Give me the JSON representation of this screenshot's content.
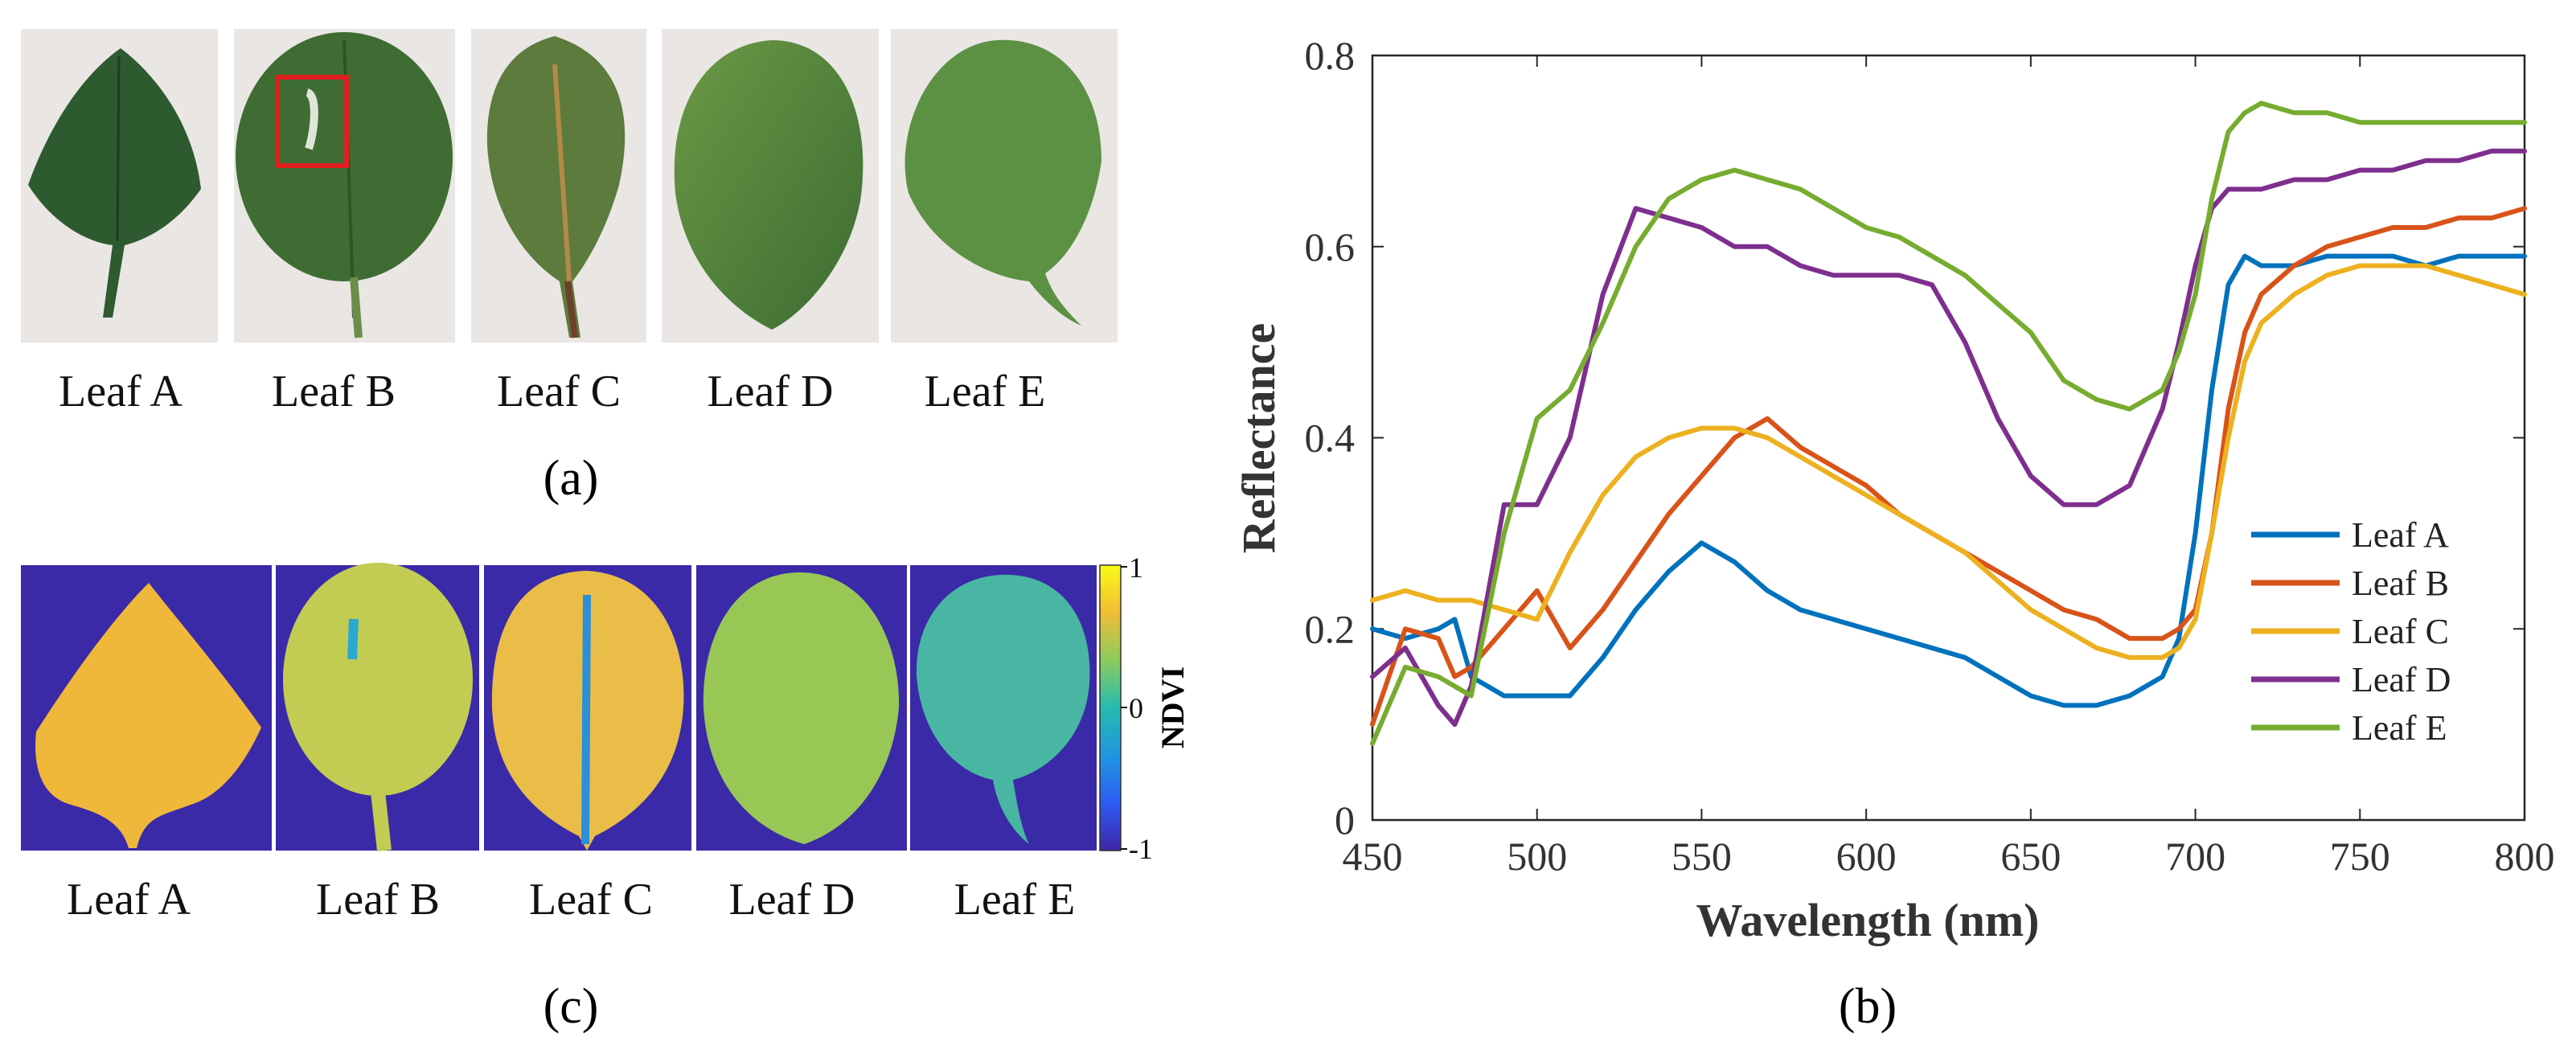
{
  "panels": {
    "a": {
      "caption": "(a)",
      "leaf_labels": [
        "Leaf A",
        "Leaf B",
        "Leaf C",
        "Leaf D",
        "Leaf E"
      ],
      "highlight_box_color": "#e02020",
      "background_color": "#e9e6e4"
    },
    "c": {
      "caption": "(c)",
      "leaf_labels": [
        "Leaf A",
        "Leaf B",
        "Leaf C",
        "Leaf D",
        "Leaf E"
      ],
      "colorbar_label": "NDVI",
      "colorbar_ticks": [
        "1",
        "0",
        "-1"
      ],
      "background_color": "#3a2aa8",
      "colormap": [
        "#3e26a8",
        "#2d5cf5",
        "#1f96e0",
        "#23bcb0",
        "#8ccb5c",
        "#f2bc35",
        "#f9fb15"
      ]
    },
    "b": {
      "caption": "(b)"
    }
  },
  "chart_data": {
    "type": "line",
    "xlabel": "Wavelength (nm)",
    "ylabel": "Reflectance",
    "xlim": [
      450,
      800
    ],
    "ylim": [
      0,
      0.8
    ],
    "xticks": [
      450,
      500,
      550,
      600,
      650,
      700,
      750,
      800
    ],
    "yticks": [
      0,
      0.2,
      0.4,
      0.6,
      0.8
    ],
    "ytick_labels": [
      "0",
      "0.2",
      "0.4",
      "0.6",
      "0.8"
    ],
    "legend_position": "bottom-right",
    "x": [
      450,
      460,
      470,
      475,
      480,
      490,
      500,
      510,
      520,
      530,
      540,
      550,
      560,
      570,
      580,
      590,
      600,
      610,
      620,
      630,
      640,
      650,
      660,
      670,
      680,
      690,
      695,
      700,
      705,
      710,
      715,
      720,
      730,
      740,
      750,
      760,
      770,
      780,
      790,
      800
    ],
    "series": [
      {
        "name": "Leaf A",
        "color": "#0072bd",
        "values": [
          0.2,
          0.19,
          0.2,
          0.21,
          0.15,
          0.13,
          0.13,
          0.13,
          0.17,
          0.22,
          0.26,
          0.29,
          0.27,
          0.24,
          0.22,
          0.21,
          0.2,
          0.19,
          0.18,
          0.17,
          0.15,
          0.13,
          0.12,
          0.12,
          0.13,
          0.15,
          0.19,
          0.3,
          0.45,
          0.56,
          0.59,
          0.58,
          0.58,
          0.59,
          0.59,
          0.59,
          0.58,
          0.59,
          0.59,
          0.59
        ]
      },
      {
        "name": "Leaf B",
        "color": "#d95319",
        "values": [
          0.1,
          0.2,
          0.19,
          0.15,
          0.16,
          0.2,
          0.24,
          0.18,
          0.22,
          0.27,
          0.32,
          0.36,
          0.4,
          0.42,
          0.39,
          0.37,
          0.35,
          0.32,
          0.3,
          0.28,
          0.26,
          0.24,
          0.22,
          0.21,
          0.19,
          0.19,
          0.2,
          0.22,
          0.3,
          0.43,
          0.51,
          0.55,
          0.58,
          0.6,
          0.61,
          0.62,
          0.62,
          0.63,
          0.63,
          0.64
        ]
      },
      {
        "name": "Leaf C",
        "color": "#edb120",
        "values": [
          0.23,
          0.24,
          0.23,
          0.23,
          0.23,
          0.22,
          0.21,
          0.28,
          0.34,
          0.38,
          0.4,
          0.41,
          0.41,
          0.4,
          0.38,
          0.36,
          0.34,
          0.32,
          0.3,
          0.28,
          0.25,
          0.22,
          0.2,
          0.18,
          0.17,
          0.17,
          0.18,
          0.21,
          0.3,
          0.4,
          0.48,
          0.52,
          0.55,
          0.57,
          0.58,
          0.58,
          0.58,
          0.57,
          0.56,
          0.55
        ]
      },
      {
        "name": "Leaf D",
        "color": "#7e2f8e",
        "values": [
          0.15,
          0.18,
          0.12,
          0.1,
          0.14,
          0.33,
          0.33,
          0.4,
          0.55,
          0.64,
          0.63,
          0.62,
          0.6,
          0.6,
          0.58,
          0.57,
          0.57,
          0.57,
          0.56,
          0.5,
          0.42,
          0.36,
          0.33,
          0.33,
          0.35,
          0.43,
          0.5,
          0.58,
          0.64,
          0.66,
          0.66,
          0.66,
          0.67,
          0.67,
          0.68,
          0.68,
          0.69,
          0.69,
          0.7,
          0.7
        ]
      },
      {
        "name": "Leaf E",
        "color": "#77ac30",
        "values": [
          0.08,
          0.16,
          0.15,
          0.14,
          0.13,
          0.3,
          0.42,
          0.45,
          0.52,
          0.6,
          0.65,
          0.67,
          0.68,
          0.67,
          0.66,
          0.64,
          0.62,
          0.61,
          0.59,
          0.57,
          0.54,
          0.51,
          0.46,
          0.44,
          0.43,
          0.45,
          0.49,
          0.55,
          0.65,
          0.72,
          0.74,
          0.75,
          0.74,
          0.74,
          0.73,
          0.73,
          0.73,
          0.73,
          0.73,
          0.73
        ]
      }
    ]
  }
}
